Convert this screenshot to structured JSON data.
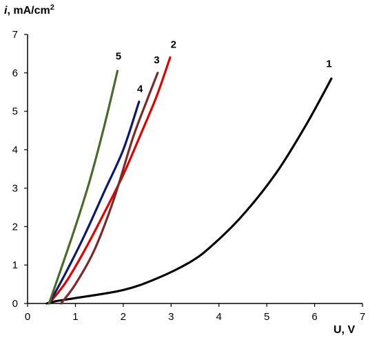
{
  "chart_data": {
    "type": "line",
    "title": "",
    "xlabel": "U, V",
    "ylabel_italic": "i",
    "ylabel_rest": ", mA/cm",
    "ylabel_sup": "2",
    "xlim": [
      0,
      7
    ],
    "ylim": [
      0,
      7
    ],
    "x_ticks": [
      "0",
      "1",
      "2",
      "3",
      "4",
      "5",
      "6",
      "7"
    ],
    "y_ticks": [
      "0",
      "1",
      "2",
      "3",
      "4",
      "5",
      "6",
      "7"
    ],
    "grid": false,
    "legend": "none",
    "series": [
      {
        "name": "1",
        "color": "#000000",
        "x": [
          0.4,
          0.6,
          1.0,
          2.0,
          2.7,
          3.4,
          3.85,
          4.5,
          5.2,
          5.8,
          6.2,
          6.35
        ],
        "y": [
          0.0,
          0.06,
          0.14,
          0.35,
          0.65,
          1.08,
          1.5,
          2.3,
          3.4,
          4.6,
          5.5,
          5.85
        ]
      },
      {
        "name": "2",
        "color": "#e00000",
        "x": [
          0.45,
          0.8,
          1.2,
          1.6,
          2.0,
          2.4,
          2.7,
          2.98
        ],
        "y": [
          0.0,
          0.55,
          1.4,
          2.35,
          3.35,
          4.5,
          5.4,
          6.4
        ]
      },
      {
        "name": "3",
        "color": "#7b2a2a",
        "x": [
          0.7,
          1.0,
          1.4,
          1.8,
          2.2,
          2.5,
          2.72
        ],
        "y": [
          0.0,
          0.5,
          1.4,
          2.7,
          4.3,
          5.3,
          6.0
        ]
      },
      {
        "name": "4",
        "color": "#0a1a6a",
        "x": [
          0.45,
          0.8,
          1.2,
          1.6,
          2.0,
          2.33
        ],
        "y": [
          0.0,
          0.8,
          1.8,
          2.9,
          4.0,
          5.25
        ]
      },
      {
        "name": "5",
        "color": "#4a6a2a",
        "x": [
          0.45,
          0.7,
          1.0,
          1.3,
          1.6,
          1.88
        ],
        "y": [
          0.0,
          0.9,
          2.0,
          3.2,
          4.6,
          6.05
        ]
      }
    ],
    "labels": [
      {
        "text": "1",
        "x": 6.3,
        "y": 6.15
      },
      {
        "text": "2",
        "x": 3.05,
        "y": 6.65
      },
      {
        "text": "3",
        "x": 2.7,
        "y": 6.25
      },
      {
        "text": "4",
        "x": 2.35,
        "y": 5.5
      },
      {
        "text": "5",
        "x": 1.9,
        "y": 6.35
      }
    ]
  }
}
